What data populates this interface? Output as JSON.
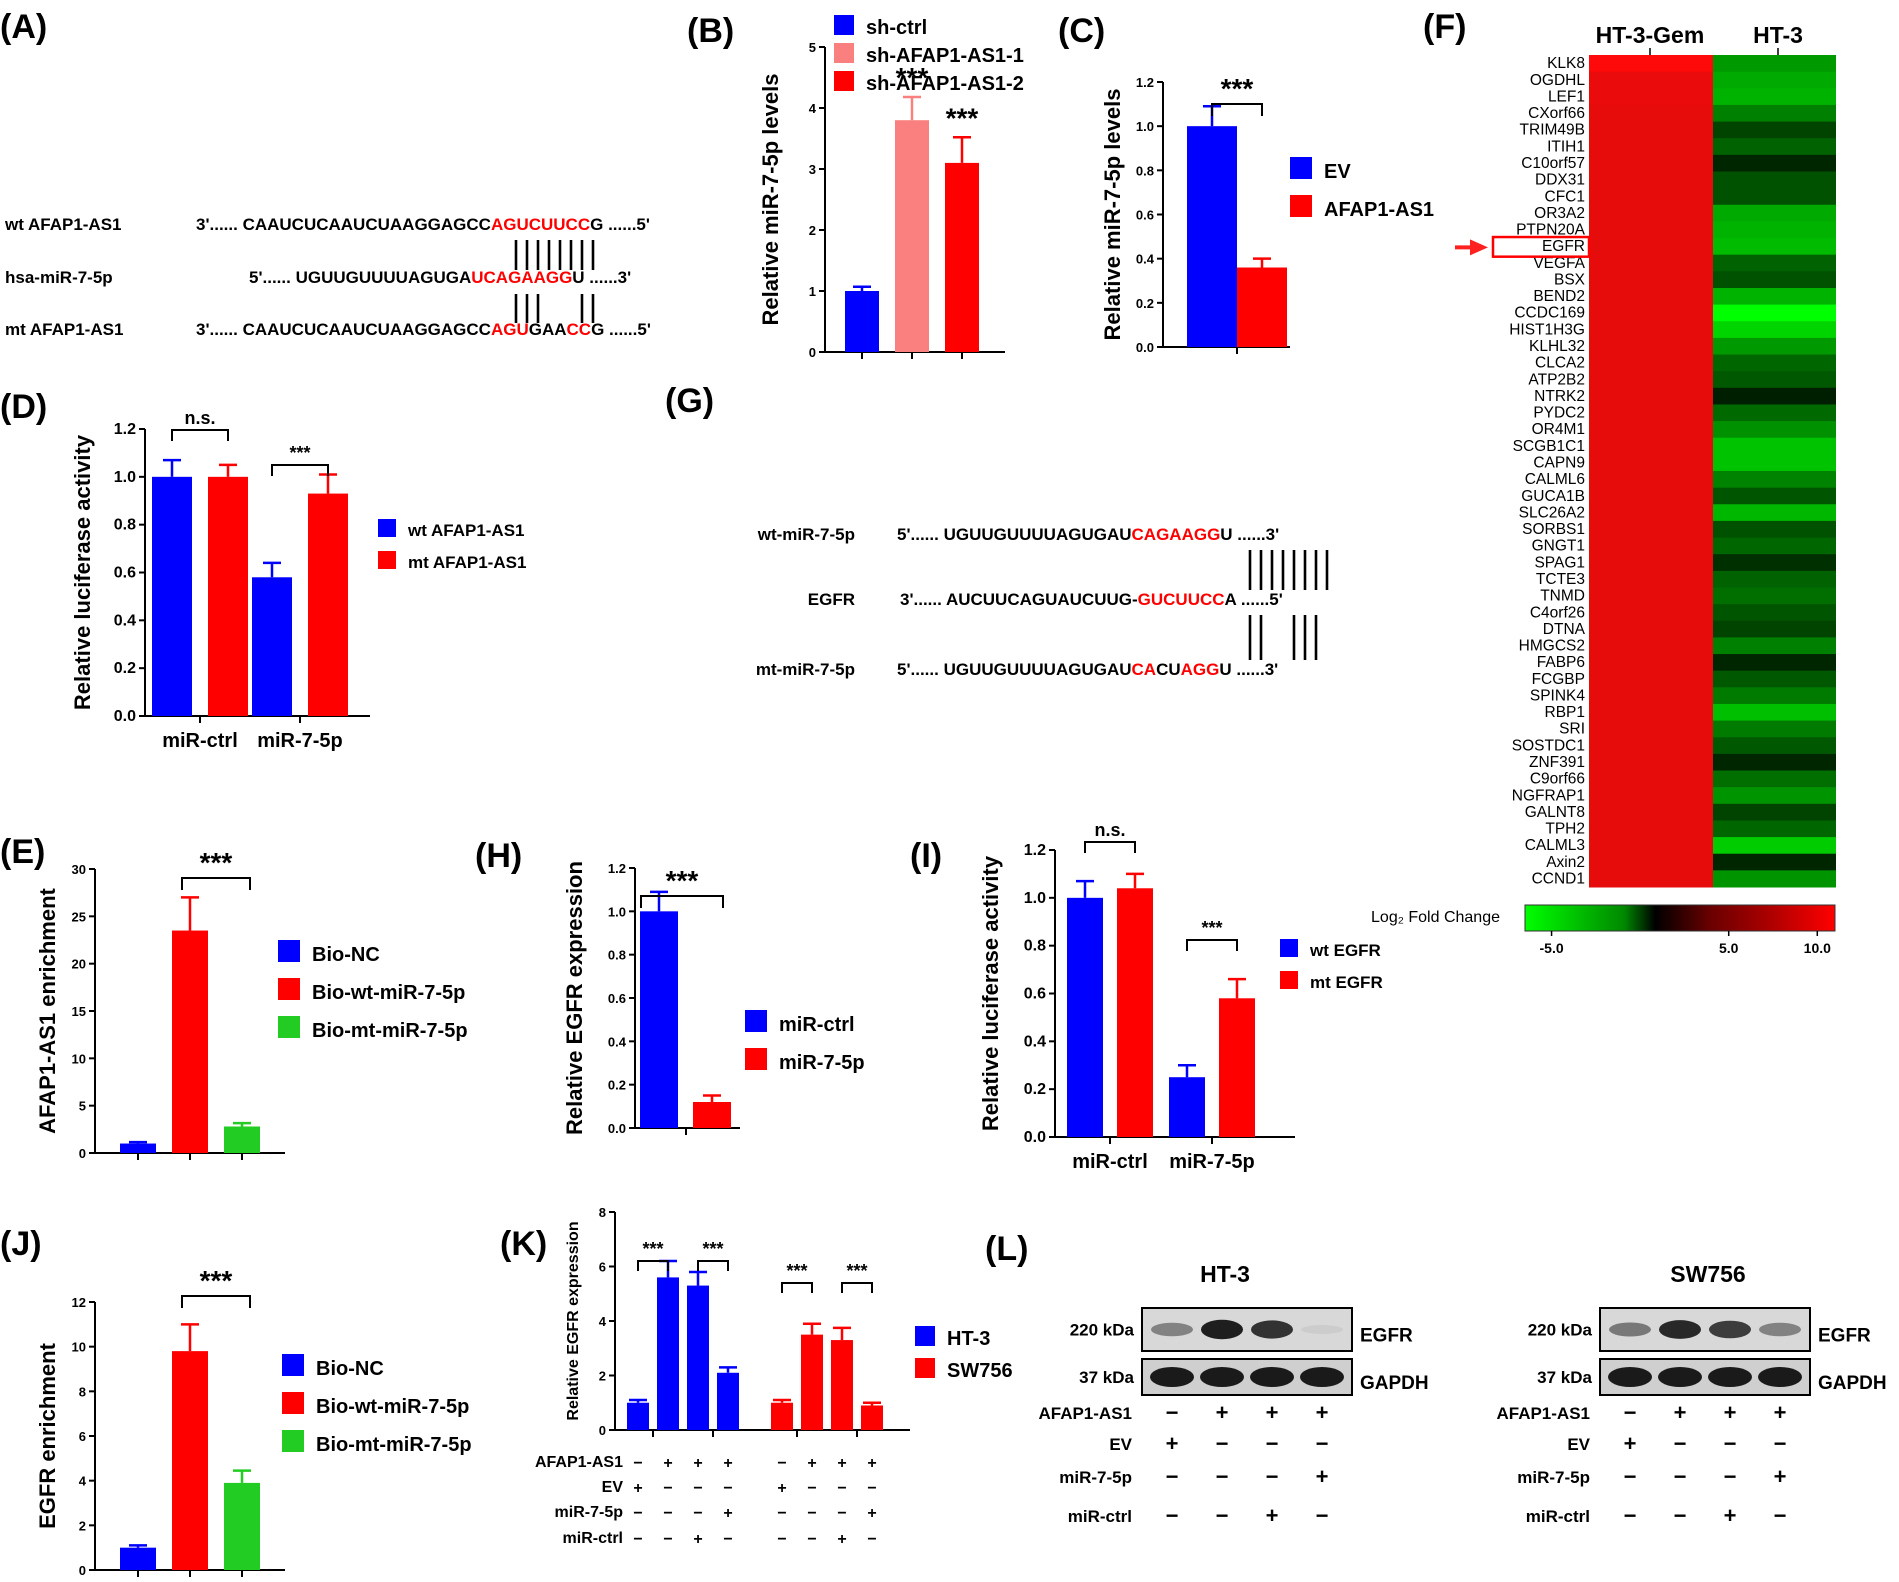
{
  "labels": {
    "A": "(A)",
    "B": "(B)",
    "C": "(C)",
    "D": "(D)",
    "E": "(E)",
    "F": "(F)",
    "G": "(G)",
    "H": "(H)",
    "I": "(I)",
    "J": "(J)",
    "K": "(K)",
    "L": "(L)"
  },
  "colors": {
    "blue": "#0000ff",
    "red": "#ff0000",
    "pink": "#fa8080",
    "green": "#22cc22",
    "seq_red": "#ff0000"
  },
  "panelA": {
    "rows": [
      {
        "name": "wt AFAP1-AS1",
        "prefix": "3'......",
        "parts": [
          {
            "t": "CAAUCUCAAUCUAAGGAGCC",
            "r": false
          },
          {
            "t": "AGUCUUCC",
            "r": true
          },
          {
            "t": "G",
            "r": false
          }
        ],
        "suffix": "......5'"
      },
      {
        "name": "hsa-miR-7-5p",
        "prefix": "5'......",
        "parts": [
          {
            "t": "UGUUGUUUUAGUGA",
            "r": false
          },
          {
            "t": "UCAGAAGG",
            "r": true
          },
          {
            "t": "U",
            "r": false
          }
        ],
        "suffix": "......3'"
      },
      {
        "name": "mt AFAP1-AS1",
        "prefix": "3'......",
        "parts": [
          {
            "t": "CAAUCUCAAUCUAAGGAGCC",
            "r": false
          },
          {
            "t": "AGU",
            "r": true
          },
          {
            "t": "GAA",
            "r": false
          },
          {
            "t": "CC",
            "r": true
          },
          {
            "t": "G",
            "r": false
          }
        ],
        "suffix": "......5'"
      }
    ]
  },
  "panelG": {
    "rows": [
      {
        "name": "wt-miR-7-5p",
        "prefix": "5'......",
        "parts": [
          {
            "t": "UGUUGUUUUAGUGAU",
            "r": false
          },
          {
            "t": "CAGAAGG",
            "r": true
          },
          {
            "t": "U",
            "r": false
          }
        ],
        "suffix": "......3'"
      },
      {
        "name": "EGFR",
        "prefix": "3'......",
        "parts": [
          {
            "t": "AUCUUCAGUAUCUUG-",
            "r": false
          },
          {
            "t": "GUCUUCC",
            "r": true
          },
          {
            "t": "A",
            "r": false
          }
        ],
        "suffix": "......5'"
      },
      {
        "name": "mt-miR-7-5p",
        "prefix": "5'......",
        "parts": [
          {
            "t": "UGUUGUUUUAGUGAU",
            "r": false
          },
          {
            "t": "CA",
            "r": true
          },
          {
            "t": "CU",
            "r": false
          },
          {
            "t": "AGG",
            "r": true
          },
          {
            "t": "U",
            "r": false
          }
        ],
        "suffix": "......3'"
      }
    ]
  },
  "chart_data": [
    {
      "id": "B",
      "type": "bar",
      "ylabel": "Relative miR-7-5p levels",
      "ylim": [
        0,
        5
      ],
      "yticks": [
        "0",
        "1",
        "2",
        "3",
        "4",
        "5"
      ],
      "bars": [
        {
          "name": "sh-ctrl",
          "value": 1.0,
          "err": 0.07,
          "color": "blue"
        },
        {
          "name": "sh-AFAP1-AS1-1",
          "value": 3.8,
          "err": 0.38,
          "color": "pink"
        },
        {
          "name": "sh-AFAP1-AS1-2",
          "value": 3.1,
          "err": 0.42,
          "color": "red"
        }
      ],
      "sig": [
        {
          "bar": 1,
          "text": "***"
        },
        {
          "bar": 2,
          "text": "***"
        }
      ],
      "legend": [
        "sh-ctrl",
        "sh-AFAP1-AS1-1",
        "sh-AFAP1-AS1-2"
      ]
    },
    {
      "id": "C",
      "type": "bar",
      "ylabel": "Relative miR-7-5p levels",
      "ylim": [
        0,
        1.2
      ],
      "yticks": [
        "0.0",
        "0.2",
        "0.4",
        "0.6",
        "0.8",
        "1.0",
        "1.2"
      ],
      "bars": [
        {
          "name": "EV",
          "value": 1.0,
          "err": 0.09,
          "color": "blue"
        },
        {
          "name": "AFAP1-AS1",
          "value": 0.36,
          "err": 0.04,
          "color": "red"
        }
      ],
      "bracket": "***",
      "legend": [
        "EV",
        "AFAP1-AS1"
      ]
    },
    {
      "id": "D",
      "type": "bar",
      "ylabel": "Relative luciferase activity",
      "ylim": [
        0,
        1.2
      ],
      "yticks": [
        "0.0",
        "0.2",
        "0.4",
        "0.6",
        "0.8",
        "1.0",
        "1.2"
      ],
      "categories": [
        "miR-ctrl",
        "miR-7-5p"
      ],
      "series": [
        {
          "name": "wt AFAP1-AS1",
          "values": [
            1.0,
            0.58
          ],
          "errs": [
            0.07,
            0.06
          ],
          "color": "blue"
        },
        {
          "name": "mt AFAP1-AS1",
          "values": [
            1.0,
            0.93
          ],
          "errs": [
            0.05,
            0.08
          ],
          "color": "red"
        }
      ],
      "brackets": [
        "n.s.",
        "***"
      ]
    },
    {
      "id": "E",
      "type": "bar",
      "ylabel": "AFAP1-AS1 enrichment",
      "ylim": [
        0,
        30
      ],
      "yticks": [
        "0",
        "5",
        "10",
        "15",
        "20",
        "25",
        "30"
      ],
      "bars": [
        {
          "name": "Bio-NC",
          "value": 1.0,
          "err": 0.15,
          "color": "blue"
        },
        {
          "name": "Bio-wt-miR-7-5p",
          "value": 23.5,
          "err": 3.5,
          "color": "red"
        },
        {
          "name": "Bio-mt-miR-7-5p",
          "value": 2.8,
          "err": 0.35,
          "color": "green"
        }
      ],
      "bracket": "***",
      "legend": [
        "Bio-NC",
        "Bio-wt-miR-7-5p",
        "Bio-mt-miR-7-5p"
      ]
    },
    {
      "id": "H",
      "type": "bar",
      "ylabel": "Relative EGFR expression",
      "ylim": [
        0,
        1.2
      ],
      "yticks": [
        "0.0",
        "0.2",
        "0.4",
        "0.6",
        "0.8",
        "1.0",
        "1.2"
      ],
      "bars": [
        {
          "name": "miR-ctrl",
          "value": 1.0,
          "err": 0.09,
          "color": "blue"
        },
        {
          "name": "miR-7-5p",
          "value": 0.12,
          "err": 0.03,
          "color": "red"
        }
      ],
      "bracket": "***",
      "legend": [
        "miR-ctrl",
        "miR-7-5p"
      ]
    },
    {
      "id": "I",
      "type": "bar",
      "ylabel": "Relative luciferase activity",
      "ylim": [
        0,
        1.2
      ],
      "yticks": [
        "0.0",
        "0.2",
        "0.4",
        "0.6",
        "0.8",
        "1.0",
        "1.2"
      ],
      "categories": [
        "miR-ctrl",
        "miR-7-5p"
      ],
      "series": [
        {
          "name": "wt EGFR",
          "values": [
            1.0,
            0.25
          ],
          "errs": [
            0.07,
            0.05
          ],
          "color": "blue"
        },
        {
          "name": "mt EGFR",
          "values": [
            1.04,
            0.58
          ],
          "errs": [
            0.06,
            0.08
          ],
          "color": "red"
        }
      ],
      "brackets": [
        "n.s.",
        "***"
      ]
    },
    {
      "id": "J",
      "type": "bar",
      "ylabel": "EGFR enrichment",
      "ylim": [
        0,
        12
      ],
      "yticks": [
        "0",
        "2",
        "4",
        "6",
        "8",
        "10",
        "12"
      ],
      "bars": [
        {
          "name": "Bio-NC",
          "value": 1.0,
          "err": 0.1,
          "color": "blue"
        },
        {
          "name": "Bio-wt-miR-7-5p",
          "value": 9.8,
          "err": 1.2,
          "color": "red"
        },
        {
          "name": "Bio-mt-miR-7-5p",
          "value": 3.9,
          "err": 0.55,
          "color": "green"
        }
      ],
      "bracket": "***",
      "legend": [
        "Bio-NC",
        "Bio-wt-miR-7-5p",
        "Bio-mt-miR-7-5p"
      ]
    },
    {
      "id": "K",
      "type": "bar",
      "ylabel": "Relative EGFR expression",
      "ylim": [
        0,
        8
      ],
      "yticks": [
        "0",
        "2",
        "4",
        "6",
        "8"
      ],
      "series": [
        {
          "name": "HT-3",
          "values": [
            1.0,
            5.6,
            5.3,
            2.1
          ],
          "errs": [
            0.1,
            0.6,
            0.5,
            0.2
          ],
          "color": "blue"
        },
        {
          "name": "SW756",
          "values": [
            1.0,
            3.5,
            3.3,
            0.9
          ],
          "errs": [
            0.1,
            0.4,
            0.45,
            0.1
          ],
          "color": "red"
        }
      ],
      "brackets": [
        "***",
        "***",
        "***",
        "***"
      ],
      "conditions": [
        {
          "name": "AFAP1-AS1",
          "signs": [
            "−",
            "+",
            "+",
            "+",
            "−",
            "+",
            "+",
            "+"
          ]
        },
        {
          "name": "EV",
          "signs": [
            "+",
            "−",
            "−",
            "−",
            "+",
            "−",
            "−",
            "−"
          ]
        },
        {
          "name": "miR-7-5p",
          "signs": [
            "−",
            "−",
            "−",
            "+",
            "−",
            "−",
            "−",
            "+"
          ]
        },
        {
          "name": "miR-ctrl",
          "signs": [
            "−",
            "−",
            "+",
            "−",
            "−",
            "−",
            "+",
            "−"
          ]
        }
      ]
    },
    {
      "id": "F",
      "type": "heatmap",
      "columns": [
        "HT-3-Gem",
        "HT-3"
      ],
      "genes": [
        "KLK8",
        "OGDHL",
        "LEF1",
        "CXorf66",
        "TRIM49B",
        "ITIH1",
        "C10orf57",
        "DDX31",
        "CFC1",
        "OR3A2",
        "PTPN20A",
        "EGFR",
        "VEGFA",
        "BSX",
        "BEND2",
        "CCDC169",
        "HIST1H3G",
        "KLHL32",
        "CLCA2",
        "ATP2B2",
        "NTRK2",
        "PYDC2",
        "OR4M1",
        "SCGB1C1",
        "CAPN9",
        "CALML6",
        "GUCA1B",
        "SLC26A2",
        "SORBS1",
        "GNGT1",
        "SPAG1",
        "TCTE3",
        "TNMD",
        "C4orf26",
        "DTNA",
        "HMGCS2",
        "FABP6",
        "FCGBP",
        "SPINK4",
        "RBP1",
        "SRI",
        "SOSTDC1",
        "ZNF391",
        "C9orf66",
        "NGFRAP1",
        "GALNT8",
        "TPH2",
        "CALML3",
        "Axin2",
        "CCND1"
      ],
      "gem_values": [
        10,
        9,
        9,
        8.8,
        8.8,
        8.8,
        8.8,
        8.8,
        8.8,
        8.8,
        8.8,
        8.8,
        8.8,
        8.8,
        8.8,
        8.8,
        8.8,
        8.8,
        8.8,
        8.8,
        8.8,
        8.8,
        8.8,
        8.8,
        8.8,
        8.8,
        8.8,
        8.8,
        8.8,
        8.8,
        8.8,
        8.8,
        8.8,
        8.8,
        8.8,
        8.8,
        8.8,
        8.8,
        8.8,
        8.8,
        8.8,
        8.8,
        8.8,
        8.8,
        8.8,
        8.8,
        8.8,
        8.8,
        8.8,
        8.8
      ],
      "ht3_values": [
        -3.6,
        -4.0,
        -4.2,
        -3.0,
        -1.6,
        -2.3,
        -0.9,
        -1.9,
        -1.9,
        -4.0,
        -4.2,
        -4.4,
        -2.3,
        -1.9,
        -4.2,
        -6.3,
        -5.0,
        -3.6,
        -2.4,
        -2.1,
        -0.7,
        -2.5,
        -3.4,
        -4.6,
        -4.6,
        -3.1,
        -2.0,
        -4.3,
        -1.9,
        -2.4,
        -1.1,
        -2.3,
        -2.6,
        -2.0,
        -1.6,
        -3.0,
        -0.9,
        -2.1,
        -2.9,
        -4.5,
        -2.9,
        -2.1,
        -0.9,
        -2.6,
        -3.5,
        -1.6,
        -2.4,
        -4.8,
        -0.9,
        -3.5
      ],
      "highlight": "EGFR",
      "legend_title": "Log₂ Fold Change",
      "legend_ticks": [
        {
          "label": "-5.0",
          "value": -5
        },
        {
          "label": "5.0",
          "value": 5
        },
        {
          "label": "10.0",
          "value": 10
        }
      ]
    }
  ],
  "panelL": {
    "blots": [
      {
        "title": "HT-3"
      },
      {
        "title": "SW756"
      }
    ],
    "band_labels": [
      "220 kDa",
      "37 kDa"
    ],
    "band_names": [
      "EGFR",
      "GAPDH"
    ],
    "egfr_intensity": [
      [
        0.45,
        0.95,
        0.85,
        0.08
      ],
      [
        0.5,
        0.9,
        0.8,
        0.45
      ]
    ],
    "conditions": [
      {
        "name": "AFAP1-AS1",
        "signs": [
          "−",
          "+",
          "+",
          "+"
        ]
      },
      {
        "name": "EV",
        "signs": [
          "+",
          "−",
          "−",
          "−"
        ]
      },
      {
        "name": "miR-7-5p",
        "signs": [
          "−",
          "−",
          "−",
          "+"
        ]
      },
      {
        "name": "miR-ctrl",
        "signs": [
          "−",
          "−",
          "+",
          "−"
        ]
      }
    ]
  }
}
